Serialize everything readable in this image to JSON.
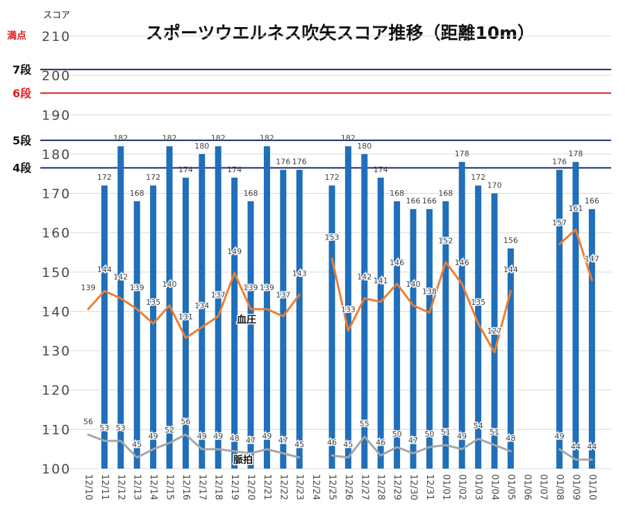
{
  "chart_data": {
    "type": "bar",
    "title": "スポーツウエルネス吹矢スコア推移（距離10m）",
    "ylabel": "スコア",
    "max_label": "満点",
    "ylim": [
      100,
      210
    ],
    "yticks": [
      100,
      110,
      120,
      130,
      140,
      150,
      160,
      170,
      180,
      190,
      200,
      210
    ],
    "categories": [
      "12/10",
      "12/11",
      "12/12",
      "12/13",
      "12/14",
      "12/15",
      "12/16",
      "12/17",
      "12/18",
      "12/19",
      "12/20",
      "12/21",
      "12/22",
      "12/23",
      "12/24",
      "12/25",
      "12/26",
      "12/27",
      "12/28",
      "12/29",
      "12/30",
      "12/31",
      "01/01",
      "01/02",
      "01/03",
      "01/04",
      "01/05",
      "01/06",
      "01/07",
      "01/08",
      "01/09",
      "01/10"
    ],
    "series": [
      {
        "kind": "bar",
        "color": "#1f6fba",
        "values": [
          null,
          172,
          182,
          168,
          172,
          182,
          174,
          180,
          182,
          174,
          168,
          182,
          176,
          176,
          null,
          172,
          182,
          180,
          174,
          168,
          166,
          166,
          168,
          178,
          172,
          170,
          156,
          null,
          null,
          176,
          178,
          166
        ]
      },
      {
        "kind": "line",
        "name": "血圧",
        "color": "#ed7d31",
        "values": [
          139,
          144,
          142,
          139,
          135,
          140,
          131,
          134,
          137,
          149,
          139,
          139,
          137,
          143,
          null,
          153,
          133,
          142,
          141,
          146,
          140,
          138,
          152,
          146,
          135,
          127,
          144,
          null,
          null,
          157,
          161,
          147
        ]
      },
      {
        "kind": "line",
        "name": "脈拍",
        "color": "#a5a5a5",
        "values": [
          56,
          53,
          53,
          45,
          49,
          52,
          56,
          49,
          49,
          48,
          47,
          49,
          47,
          45,
          null,
          46,
          45,
          55,
          46,
          50,
          47,
          50,
          51,
          49,
          54,
          51,
          48,
          null,
          null,
          49,
          44,
          44
        ]
      }
    ],
    "reference_lines": [
      {
        "label": "7段",
        "value": 201.5,
        "color": "#1a2a6c"
      },
      {
        "label": "6段",
        "value": 195.5,
        "color": "#e02020"
      },
      {
        "label": "5段",
        "value": 183.5,
        "color": "#1a2a6c"
      },
      {
        "label": "4段",
        "value": 176.5,
        "color": "#1a2a6c"
      }
    ],
    "grid": true,
    "legend": "none"
  }
}
